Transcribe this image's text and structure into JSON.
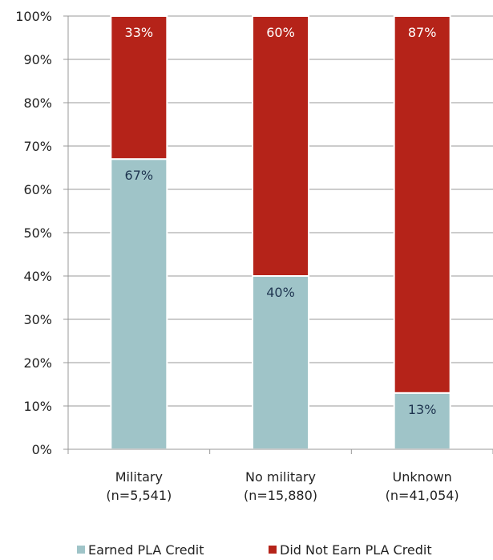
{
  "chart_data": {
    "type": "stacked-bar",
    "categories": [
      {
        "name": "Military",
        "n": "(n=5,541)"
      },
      {
        "name": "No military",
        "n": "(n=15,880)"
      },
      {
        "name": "Unknown",
        "n": "(n=41,054)"
      }
    ],
    "series": [
      {
        "name": "Earned PLA Credit",
        "color": "#9fc4c8",
        "values": [
          67,
          40,
          13
        ],
        "labels": [
          "67%",
          "40%",
          "13%"
        ],
        "label_color": "#1f3550"
      },
      {
        "name": "Did Not Earn PLA Credit",
        "color": "#b52319",
        "values": [
          33,
          60,
          87
        ],
        "labels": [
          "33%",
          "60%",
          "87%"
        ],
        "label_color": "#ffffff"
      }
    ],
    "ylim": [
      0,
      100
    ],
    "yticks": [
      {
        "value": 0,
        "label": "0%"
      },
      {
        "value": 10,
        "label": "10%"
      },
      {
        "value": 20,
        "label": "20%"
      },
      {
        "value": 30,
        "label": "30%"
      },
      {
        "value": 40,
        "label": "40%"
      },
      {
        "value": 50,
        "label": "50%"
      },
      {
        "value": 60,
        "label": "60%"
      },
      {
        "value": 70,
        "label": "70%"
      },
      {
        "value": 80,
        "label": "80%"
      },
      {
        "value": 90,
        "label": "90%"
      },
      {
        "value": 100,
        "label": "100%"
      }
    ],
    "grid": true,
    "legend": "bottom",
    "title": "",
    "xlabel": "",
    "ylabel": ""
  }
}
